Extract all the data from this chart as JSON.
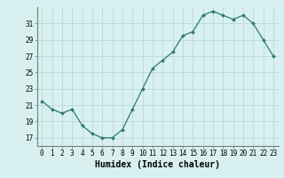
{
  "x": [
    0,
    1,
    2,
    3,
    4,
    5,
    6,
    7,
    8,
    9,
    10,
    11,
    12,
    13,
    14,
    15,
    16,
    17,
    18,
    19,
    20,
    21,
    22,
    23
  ],
  "y": [
    21.5,
    20.5,
    20.0,
    20.5,
    18.5,
    17.5,
    17.0,
    17.0,
    18.0,
    20.5,
    23.0,
    25.5,
    26.5,
    27.5,
    29.5,
    30.0,
    32.0,
    32.5,
    32.0,
    31.5,
    32.0,
    31.0,
    29.0,
    27.0
  ],
  "xlim": [
    -0.5,
    23.5
  ],
  "ylim": [
    16,
    33
  ],
  "yticks": [
    17,
    19,
    21,
    23,
    25,
    27,
    29,
    31
  ],
  "xticks": [
    0,
    1,
    2,
    3,
    4,
    5,
    6,
    7,
    8,
    9,
    10,
    11,
    12,
    13,
    14,
    15,
    16,
    17,
    18,
    19,
    20,
    21,
    22,
    23
  ],
  "xlabel": "Humidex (Indice chaleur)",
  "line_color": "#2d7a6e",
  "marker": "D",
  "marker_size": 2.0,
  "bg_color": "#d8f0f0",
  "grid_color": "#b8d4d4",
  "xlabel_fontsize": 7,
  "tick_fontsize": 5.5,
  "lw": 0.9
}
